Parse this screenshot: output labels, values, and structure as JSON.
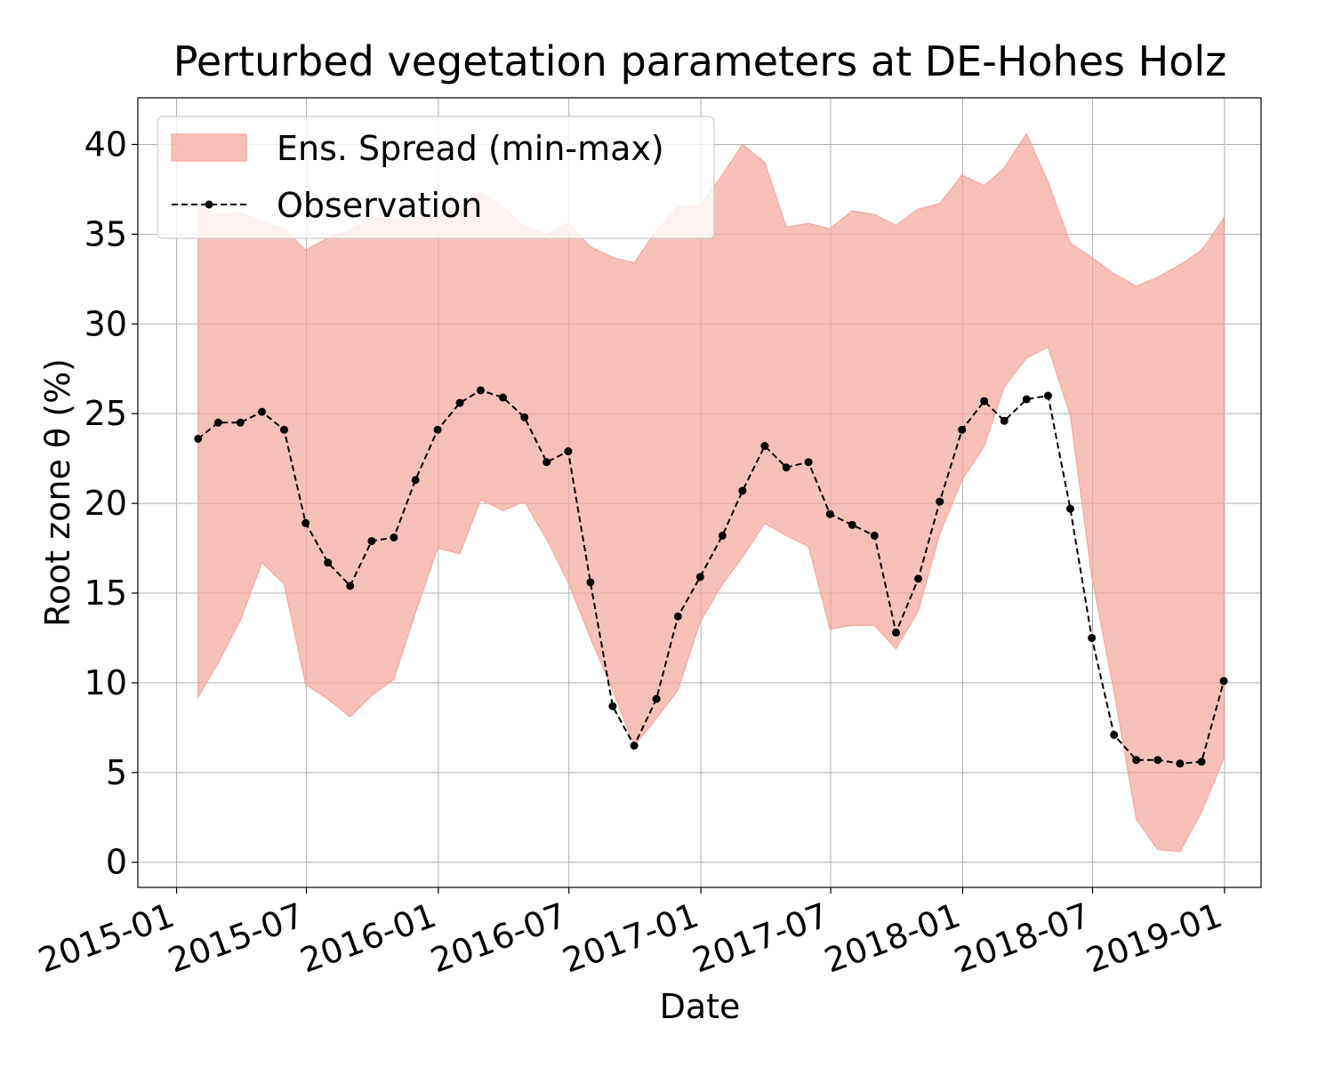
{
  "chart_data": {
    "type": "line",
    "title": "Perturbed vegetation parameters at DE-Hohes Holz",
    "xlabel": "Date",
    "ylabel": "Root zone θ  (%)",
    "ylim": [
      -1.4,
      42.6
    ],
    "xlim": [
      "2014-11-08",
      "2019-02-21"
    ],
    "yticks": [
      0,
      5,
      10,
      15,
      20,
      25,
      30,
      35,
      40
    ],
    "xticks": [
      "2015-01",
      "2015-07",
      "2016-01",
      "2016-07",
      "2017-01",
      "2017-07",
      "2018-01",
      "2018-07",
      "2019-01"
    ],
    "grid": true,
    "legend_position": "top-left",
    "legend": [
      "Ens. Spread (min-max)",
      "Observation"
    ],
    "x": [
      "2015-01-31",
      "2015-02-28",
      "2015-03-31",
      "2015-04-30",
      "2015-05-31",
      "2015-06-30",
      "2015-07-31",
      "2015-08-31",
      "2015-09-30",
      "2015-10-31",
      "2015-11-30",
      "2015-12-31",
      "2016-01-31",
      "2016-02-29",
      "2016-03-31",
      "2016-04-30",
      "2016-05-31",
      "2016-06-30",
      "2016-07-31",
      "2016-08-31",
      "2016-09-30",
      "2016-10-31",
      "2016-11-30",
      "2016-12-31",
      "2017-01-31",
      "2017-02-28",
      "2017-03-31",
      "2017-04-30",
      "2017-05-31",
      "2017-06-30",
      "2017-07-31",
      "2017-08-31",
      "2017-09-30",
      "2017-10-31",
      "2017-11-30",
      "2017-12-31",
      "2018-01-31",
      "2018-02-28",
      "2018-03-31",
      "2018-04-30",
      "2018-05-31",
      "2018-06-30",
      "2018-07-31",
      "2018-08-31",
      "2018-09-30",
      "2018-10-31",
      "2018-11-30",
      "2018-12-31"
    ],
    "series": [
      {
        "name": "Ens. Spread (min-max)",
        "kind": "band",
        "color": "#f4a79d",
        "lower": [
          9.2,
          11.1,
          13.5,
          16.7,
          15.5,
          9.9,
          9.1,
          8.1,
          9.3,
          10.2,
          13.9,
          17.5,
          17.2,
          20.2,
          19.6,
          20.1,
          18.0,
          15.6,
          12.5,
          9.6,
          6.5,
          8.0,
          9.6,
          13.4,
          15.5,
          17.0,
          18.9,
          18.2,
          17.6,
          13.0,
          13.2,
          13.2,
          11.9,
          14.0,
          18.3,
          21.3,
          23.2,
          26.5,
          28.1,
          28.7,
          24.9,
          15.9,
          9.5,
          2.4,
          0.7,
          0.6,
          2.8,
          5.8
        ],
        "upper": [
          36.5,
          36.1,
          36.2,
          35.7,
          35.3,
          34.1,
          34.8,
          35.2,
          36.0,
          35.8,
          35.9,
          36.0,
          36.8,
          37.3,
          36.5,
          35.4,
          35.0,
          35.6,
          34.3,
          33.7,
          33.4,
          35.2,
          36.5,
          36.6,
          38.3,
          40.0,
          39.0,
          35.4,
          35.6,
          35.3,
          36.3,
          36.1,
          35.5,
          36.4,
          36.7,
          38.3,
          37.7,
          38.7,
          40.6,
          37.9,
          34.5,
          33.7,
          32.8,
          32.1,
          32.6,
          33.3,
          34.1,
          35.9
        ]
      },
      {
        "name": "Observation",
        "kind": "line",
        "color": "#000000",
        "values": [
          23.6,
          24.5,
          24.5,
          25.1,
          24.1,
          18.9,
          16.7,
          15.4,
          17.9,
          18.1,
          21.3,
          24.1,
          25.6,
          26.3,
          25.9,
          24.8,
          22.3,
          22.9,
          15.6,
          8.7,
          6.5,
          9.1,
          13.7,
          15.9,
          18.2,
          20.7,
          23.2,
          22.0,
          22.3,
          19.4,
          18.8,
          18.2,
          12.8,
          15.8,
          20.1,
          24.1,
          25.7,
          24.6,
          25.8,
          26.0,
          19.7,
          12.5,
          7.1,
          5.7,
          5.7,
          5.5,
          5.6,
          10.1
        ]
      }
    ]
  }
}
